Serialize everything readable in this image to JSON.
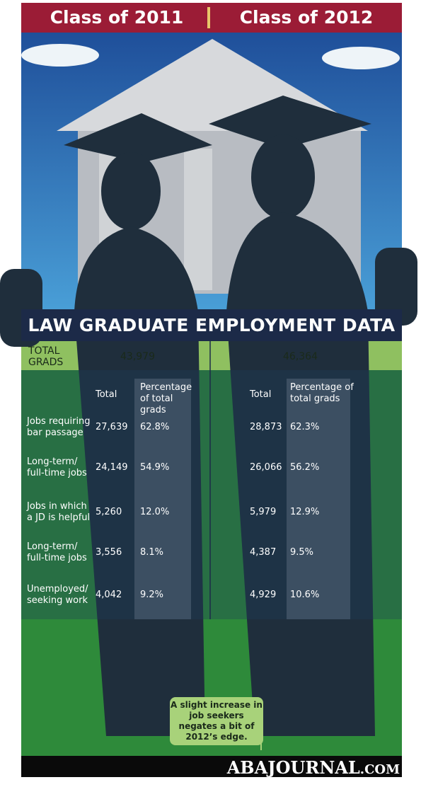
{
  "header": {
    "left": "Class of 2011",
    "right": "Class of 2012"
  },
  "title": "LAW GRADUATE EMPLOYMENT DATA",
  "total": {
    "label": "TOTAL GRADS",
    "class_2011": "43,979",
    "class_2012": "46,364"
  },
  "columns": [
    "Total",
    "Percentage of total grads",
    "Total",
    "Percentage of total grads"
  ],
  "rows": [
    {
      "label": "Jobs requiring bar passage",
      "values": [
        "27,639",
        "62.8%",
        "28,873",
        "62.3%"
      ]
    },
    {
      "label": "Long-term/ full-time jobs",
      "values": [
        "24,149",
        "54.9%",
        "26,066",
        "56.2%"
      ]
    },
    {
      "label": "Jobs in which a JD is helpful",
      "values": [
        "5,260",
        "12.0%",
        "5,979",
        "12.9%"
      ]
    },
    {
      "label": "Long-term/ full-time jobs",
      "values": [
        "3,556",
        "8.1%",
        "4,387",
        "9.5%"
      ]
    },
    {
      "label": "Unemployed/ seeking work",
      "values": [
        "4,042",
        "9.2%",
        "4,929",
        "10.6%"
      ]
    }
  ],
  "note": "A slight increase in job seekers negates a bit of 2012’s edge.",
  "logo": {
    "main": "ABAJOURNAL",
    "suffix": ".COM"
  }
}
